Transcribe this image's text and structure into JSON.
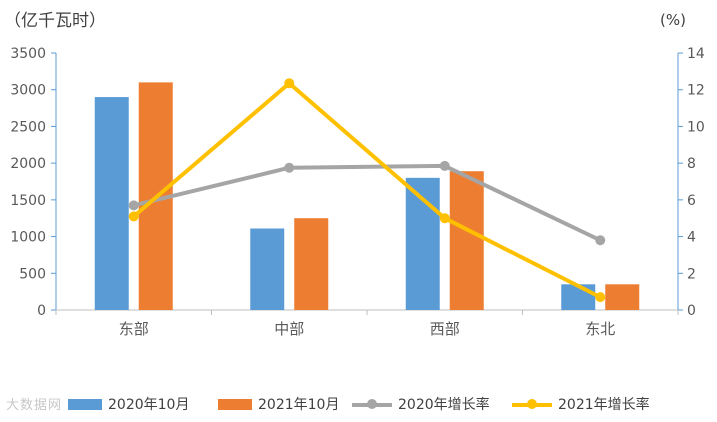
{
  "chart_data": {
    "type": "bar",
    "left_axis_unit": "（亿千瓦时）",
    "right_axis_unit": "(%)",
    "categories": [
      "东部",
      "中部",
      "西部",
      "东北"
    ],
    "ylim": [
      0,
      3500
    ],
    "yticks": [
      0,
      500,
      1000,
      1500,
      2000,
      2500,
      3000,
      3500
    ],
    "y2lim": [
      0,
      14
    ],
    "y2ticks": [
      0,
      2,
      4,
      6,
      8,
      10,
      12,
      14
    ],
    "bar_series": [
      {
        "name": "2020年10月",
        "color": "#5B9BD5",
        "values": [
          2900,
          1110,
          1800,
          350
        ]
      },
      {
        "name": "2021年10月",
        "color": "#ED7D31",
        "values": [
          3100,
          1250,
          1890,
          350
        ]
      }
    ],
    "line_series": [
      {
        "name": "2020年增长率",
        "color": "#A5A5A5",
        "values": [
          5.7,
          7.75,
          7.85,
          3.8
        ]
      },
      {
        "name": "2021年增长率",
        "color": "#FFC000",
        "values": [
          5.1,
          12.35,
          5.0,
          0.7
        ]
      }
    ],
    "grid": false,
    "legend_position": "bottom"
  },
  "watermark": "大数据网"
}
